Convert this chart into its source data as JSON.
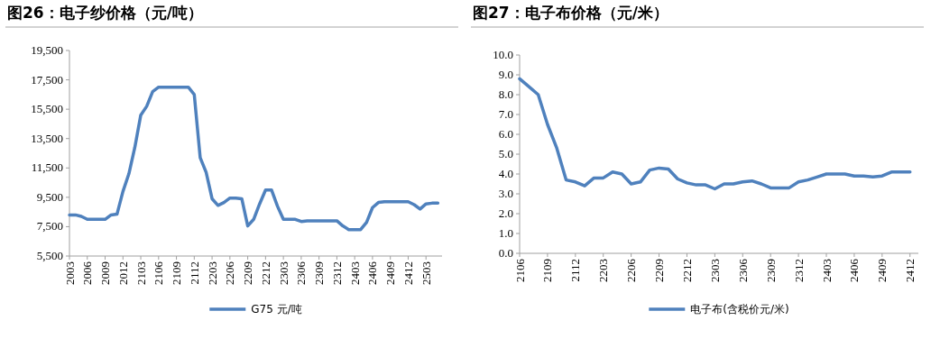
{
  "chart_data": [
    {
      "type": "line",
      "title": "图26：电子纱价格（元/吨）",
      "legend": "bottom",
      "grid": false,
      "line_style": "solid",
      "categories": [
        "2003",
        null,
        null,
        "2006",
        null,
        null,
        "2009",
        null,
        null,
        "2012",
        null,
        null,
        "2103",
        null,
        null,
        "2106",
        null,
        null,
        "2109",
        null,
        null,
        "2112",
        null,
        null,
        "2203",
        null,
        null,
        "2206",
        null,
        null,
        "2209",
        null,
        null,
        "2212",
        null,
        null,
        "2303",
        null,
        null,
        "2306",
        null,
        null,
        "2309",
        null,
        null,
        "2312",
        null,
        null,
        "2403",
        null,
        null,
        "2406",
        null,
        null,
        "2409",
        null,
        null,
        "2412",
        null,
        null,
        "2503",
        null,
        null
      ],
      "ylim": [
        5500,
        19500
      ],
      "yticks": [
        {
          "value": 5500,
          "label": "5,500"
        },
        {
          "value": 7500,
          "label": "7,500"
        },
        {
          "value": 9500,
          "label": "9,500"
        },
        {
          "value": 11500,
          "label": "11,500"
        },
        {
          "value": 13500,
          "label": "13,500"
        },
        {
          "value": 15500,
          "label": "15,500"
        },
        {
          "value": 17500,
          "label": "17,500"
        },
        {
          "value": 19500,
          "label": "19,500"
        }
      ],
      "series": [
        {
          "name": "G75 元/吨",
          "color": "#4f81bd",
          "values": [
            8300,
            8300,
            8200,
            8000,
            8000,
            8000,
            8000,
            8300,
            8350,
            9900,
            11100,
            12900,
            15100,
            15700,
            16700,
            17000,
            17000,
            17000,
            17000,
            17000,
            17000,
            16500,
            12200,
            11200,
            9400,
            8950,
            9150,
            9450,
            9450,
            9400,
            7550,
            8000,
            9050,
            10000,
            10000,
            8900,
            8000,
            8000,
            8000,
            7850,
            7900,
            7900,
            7900,
            7900,
            7900,
            7900,
            7550,
            7300,
            7300,
            7300,
            7800,
            8800,
            9150,
            9200,
            9200,
            9200,
            9200,
            9200,
            9000,
            8700,
            9050,
            9100,
            9100
          ]
        }
      ]
    },
    {
      "type": "line",
      "title": "图27：电子布价格（元/米）",
      "legend": "bottom",
      "grid": false,
      "line_style": "solid",
      "categories": [
        "2106",
        null,
        null,
        "2109",
        null,
        null,
        "2112",
        null,
        null,
        "2203",
        null,
        null,
        "2206",
        null,
        null,
        "2209",
        null,
        null,
        "2212",
        null,
        null,
        "2303",
        null,
        null,
        "2306",
        null,
        null,
        "2309",
        null,
        null,
        "2312",
        null,
        null,
        "2403",
        null,
        null,
        "2406",
        null,
        null,
        "2409",
        null,
        null,
        "2412"
      ],
      "ylim": [
        0,
        10
      ],
      "yticks": [
        {
          "value": 0,
          "label": "0.0"
        },
        {
          "value": 1,
          "label": "1.0"
        },
        {
          "value": 2,
          "label": "2.0"
        },
        {
          "value": 3,
          "label": "3.0"
        },
        {
          "value": 4,
          "label": "4.0"
        },
        {
          "value": 5,
          "label": "5.0"
        },
        {
          "value": 6,
          "label": "6.0"
        },
        {
          "value": 7,
          "label": "7.0"
        },
        {
          "value": 8,
          "label": "8.0"
        },
        {
          "value": 9,
          "label": "9.0"
        },
        {
          "value": 10,
          "label": "10.0"
        }
      ],
      "series": [
        {
          "name": "电子布(含税价元/米)",
          "color": "#4f81bd",
          "values": [
            8.8,
            8.4,
            8.0,
            6.5,
            5.3,
            3.7,
            3.6,
            3.4,
            3.8,
            3.8,
            4.1,
            4.0,
            3.5,
            3.6,
            4.2,
            4.3,
            4.25,
            3.75,
            3.55,
            3.45,
            3.45,
            3.25,
            3.5,
            3.5,
            3.6,
            3.65,
            3.5,
            3.3,
            3.3,
            3.3,
            3.6,
            3.7,
            3.85,
            4.0,
            4.0,
            4.0,
            3.9,
            3.9,
            3.85,
            3.9,
            4.1,
            4.1,
            4.1
          ]
        }
      ]
    }
  ]
}
